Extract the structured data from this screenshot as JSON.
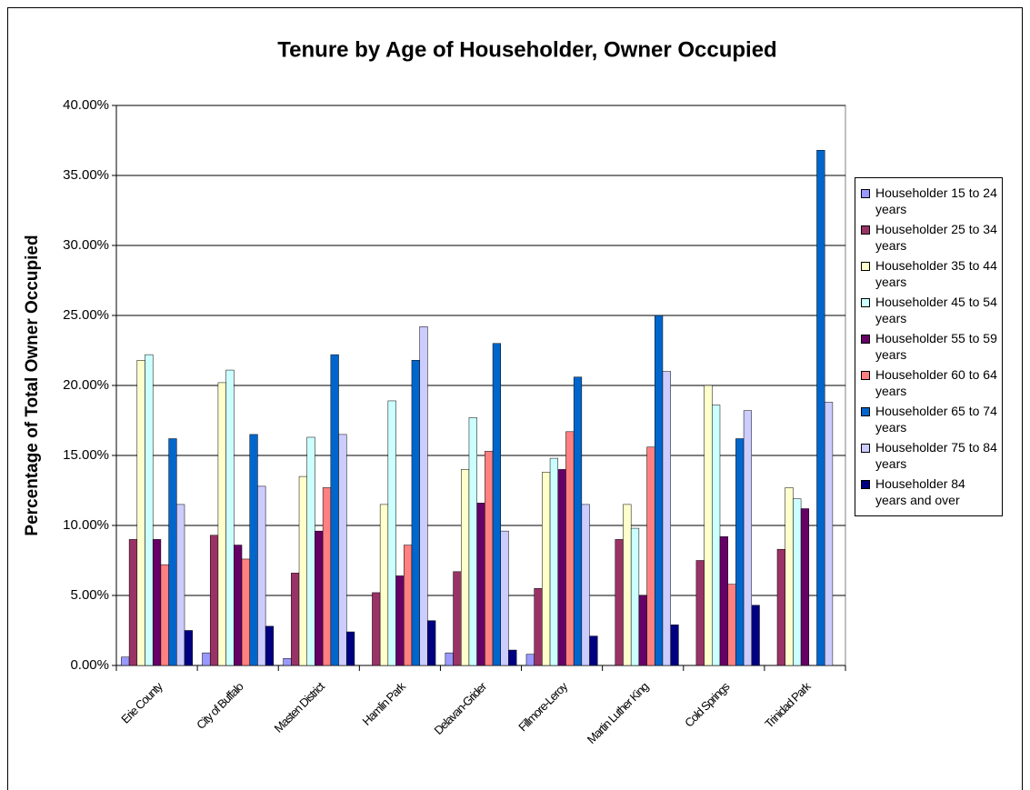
{
  "chart_data": {
    "type": "bar",
    "title": "Tenure by Age of Householder, Owner Occupied",
    "y_label": "Percentage of Total Owner Occupied",
    "categories": [
      "Erie County",
      "City of Buffalo",
      "Masten District",
      "Hamlin Park",
      "Delavan-Grider",
      "Fillmore-Leroy",
      "Martin Luther King",
      "Cold Springs",
      "Trinidad Park"
    ],
    "series": [
      {
        "name": "Householder 15 to 24 years",
        "color": "#9999ff",
        "values": [
          0.6,
          0.9,
          0.5,
          0,
          0.9,
          0.8,
          0,
          0,
          0
        ]
      },
      {
        "name": "Householder 25 to 34 years",
        "color": "#993366",
        "values": [
          9.0,
          9.3,
          6.6,
          5.2,
          6.7,
          5.5,
          9.0,
          7.5,
          8.3
        ]
      },
      {
        "name": "Householder 35 to 44 years",
        "color": "#ffffcc",
        "values": [
          21.8,
          20.2,
          13.5,
          11.5,
          14.0,
          13.8,
          11.5,
          20.0,
          12.7
        ]
      },
      {
        "name": "Householder 45 to 54 years",
        "color": "#ccffff",
        "values": [
          22.2,
          21.1,
          16.3,
          18.9,
          17.7,
          14.8,
          9.8,
          18.6,
          11.9
        ]
      },
      {
        "name": "Householder 55 to 59 years",
        "color": "#660066",
        "values": [
          9.0,
          8.6,
          9.6,
          6.4,
          11.6,
          14.0,
          5.0,
          9.2,
          11.2
        ]
      },
      {
        "name": "Householder 60 to 64 years",
        "color": "#ff8080",
        "values": [
          7.2,
          7.6,
          12.7,
          8.6,
          15.3,
          16.7,
          15.6,
          5.8,
          0
        ]
      },
      {
        "name": "Householder 65 to 74 years",
        "color": "#0066cc",
        "values": [
          16.2,
          16.5,
          22.2,
          21.8,
          23.0,
          20.6,
          25.0,
          16.2,
          36.8
        ]
      },
      {
        "name": "Householder 75 to 84 years",
        "color": "#ccccff",
        "values": [
          11.5,
          12.8,
          16.5,
          24.2,
          9.6,
          11.5,
          21.0,
          18.2,
          18.8
        ]
      },
      {
        "name": "Householder 84 years and over",
        "color": "#000080",
        "values": [
          2.5,
          2.8,
          2.4,
          3.2,
          1.1,
          2.1,
          2.9,
          4.3,
          0
        ]
      }
    ],
    "ylim": [
      0,
      40
    ],
    "yticks": [
      {
        "value": 0,
        "label": "0.00%"
      },
      {
        "value": 5,
        "label": "5.00%"
      },
      {
        "value": 10,
        "label": "10.00%"
      },
      {
        "value": 15,
        "label": "15.00%"
      },
      {
        "value": 20,
        "label": "20.00%"
      },
      {
        "value": 25,
        "label": "25.00%"
      },
      {
        "value": 30,
        "label": "30.00%"
      },
      {
        "value": 35,
        "label": "35.00%"
      },
      {
        "value": 40,
        "label": "40.00%"
      }
    ],
    "grid": true
  }
}
